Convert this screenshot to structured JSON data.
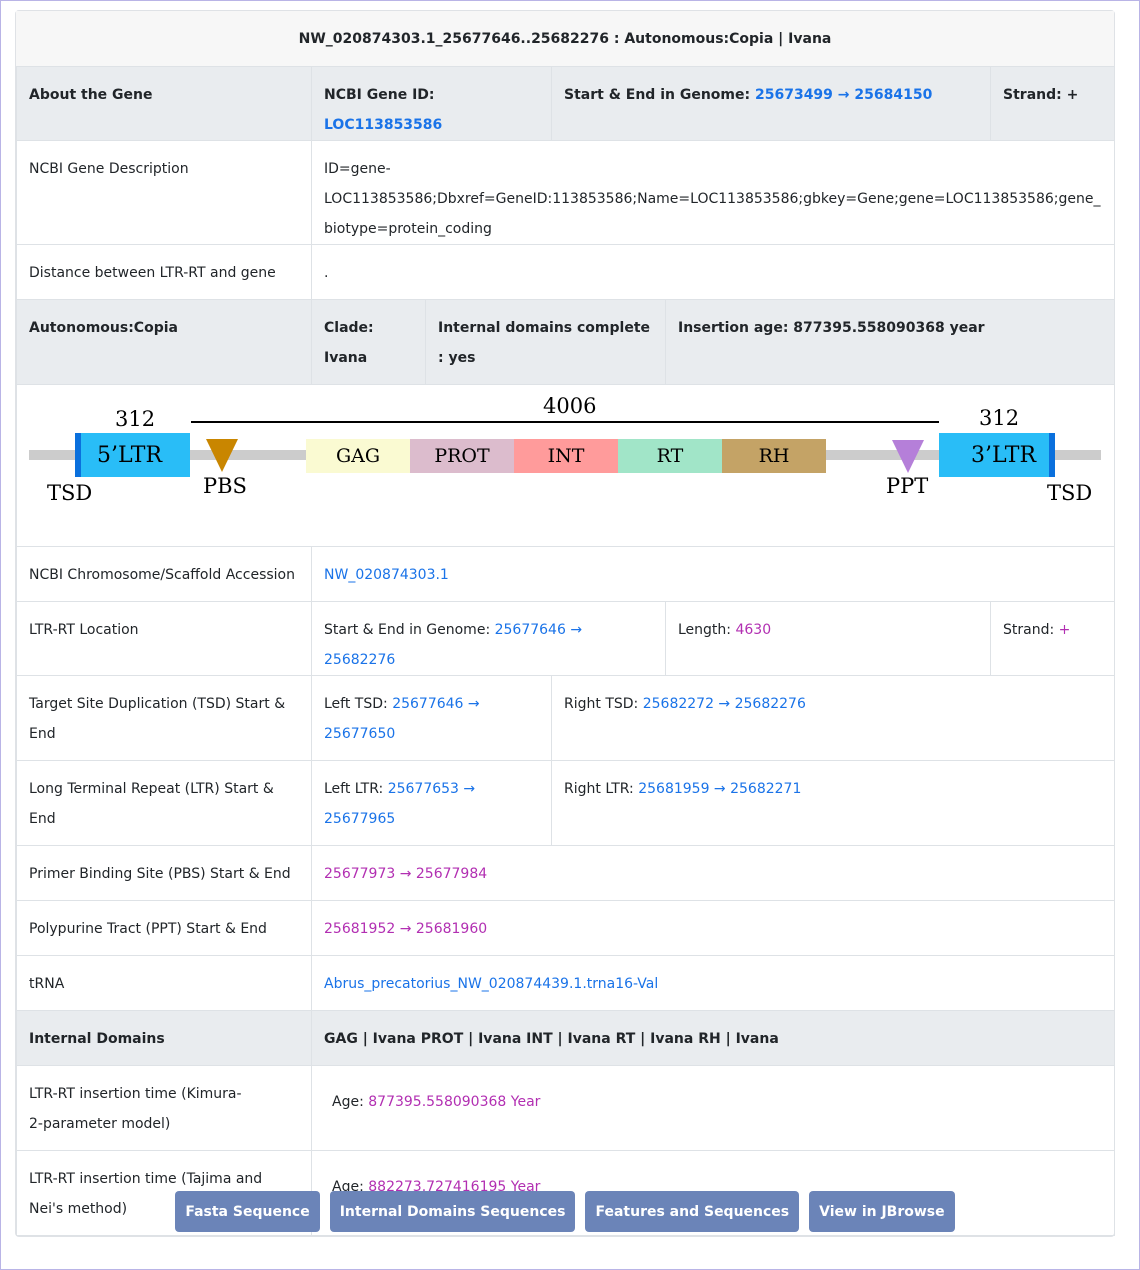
{
  "header": {
    "title": "NW_020874303.1_25677646..25682276 : Autonomous:Copia | Ivana"
  },
  "about": {
    "label": "About the Gene",
    "ncbi_gene_id_label": "NCBI Gene ID:",
    "ncbi_gene_id": "LOC113853586",
    "start_end_label": "Start & End in Genome:",
    "start_end": "25673499 → 25684150",
    "strand": "Strand: +"
  },
  "gene_description": {
    "label": "NCBI Gene Description",
    "value": "ID=gene-LOC113853586;Dbxref=GeneID:113853586;Name=LOC113853586;gbkey=Gene;gene=LOC113853586;gene_biotype=protein_coding"
  },
  "distance": {
    "label": "Distance between LTR-RT and gene",
    "value": "."
  },
  "classification": {
    "label": "Autonomous:Copia",
    "clade": "Clade: Ivana",
    "domains_complete": "Internal domains complete : yes",
    "insertion_age": "Insertion age: 877395.558090368 year"
  },
  "diagram": {
    "ltr_left_len": "312",
    "internal_len": "4006",
    "ltr_right_len": "312",
    "ltr_left": "5’LTR",
    "ltr_right": "3’LTR",
    "tsd_left": "TSD",
    "tsd_right": "TSD",
    "pbs": "PBS",
    "ppt": "PPT",
    "domains": [
      {
        "label": "GAG",
        "color": "#fafad2"
      },
      {
        "label": "PROT",
        "color": "#dcbccd"
      },
      {
        "label": "INT",
        "color": "#ff9b9b"
      },
      {
        "label": "RT",
        "color": "#a1e5c8"
      },
      {
        "label": "RH",
        "color": "#c4a366"
      }
    ],
    "colors": {
      "ltr": "#29bdf7",
      "ltr_edge": "#0a70dd",
      "backbone": "#cccccc",
      "pbs": "#c98600",
      "ppt": "#b57fd9"
    }
  },
  "chromosome": {
    "label": "NCBI Chromosome/Scaffold Accession",
    "value": "NW_020874303.1"
  },
  "location": {
    "label": "LTR-RT Location",
    "start_end_label": "Start & End in Genome:",
    "start_end": "25677646 → 25682276",
    "length_label": "Length:",
    "length": "4630",
    "strand_label": "Strand:",
    "strand": "+"
  },
  "tsd": {
    "label": "Target Site Duplication (TSD) Start & End",
    "left_label": "Left TSD:",
    "left": "25677646 → 25677650",
    "right_label": "Right TSD:",
    "right": "25682272 → 25682276"
  },
  "ltr": {
    "label": "Long Terminal Repeat (LTR) Start & End",
    "left_label": "Left LTR:",
    "left": "25677653 → 25677965",
    "right_label": "Right LTR:",
    "right": "25681959 → 25682271"
  },
  "pbs": {
    "label": "Primer Binding Site (PBS) Start & End",
    "value": "25677973 → 25677984"
  },
  "ppt": {
    "label": "Polypurine Tract (PPT) Start & End",
    "value": "25681952 → 25681960"
  },
  "trna": {
    "label": "tRNA",
    "value": "Abrus_precatorius_NW_020874439.1.trna16-Val"
  },
  "internal_domains": {
    "label": "Internal Domains",
    "value": "GAG | Ivana PROT | Ivana INT | Ivana RT | Ivana RH | Ivana"
  },
  "kimura": {
    "label": "LTR-RT insertion time (Kimura-2-parameter model)",
    "age_label": "Age:",
    "age": "877395.558090368 Year"
  },
  "tajima": {
    "label": "LTR-RT insertion time (Tajima and Nei's method)",
    "age_label": "Age:",
    "age": "882273.727416195 Year"
  },
  "buttons": {
    "fasta": "Fasta Sequence",
    "internal": "Internal Domains Sequences",
    "features": "Features and Sequences",
    "jbrowse": "View in JBrowse"
  }
}
